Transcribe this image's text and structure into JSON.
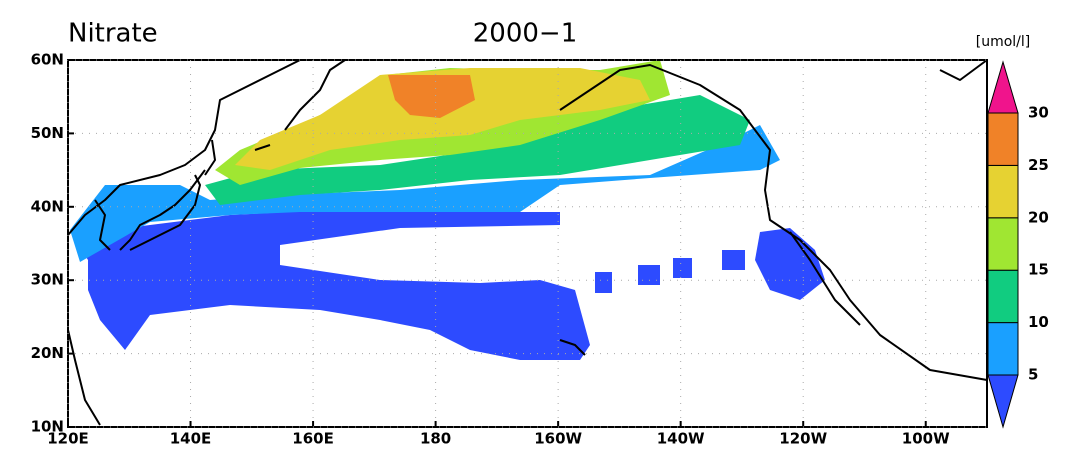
{
  "chart_data": {
    "type": "map",
    "title": "Nitrate",
    "subtitle": "2000−1",
    "xlim": [
      120,
      270
    ],
    "ylim": [
      10,
      60
    ],
    "xticks": [
      {
        "value": 120,
        "label": "120E"
      },
      {
        "value": 140,
        "label": "140E"
      },
      {
        "value": 160,
        "label": "160E"
      },
      180,
      {
        "value": 200,
        "label": "160W"
      },
      {
        "value": 220,
        "label": "140W"
      },
      {
        "value": 240,
        "label": "120W"
      },
      {
        "value": 260,
        "label": "100W"
      }
    ],
    "yticks": [
      {
        "value": 10,
        "label": "10N"
      },
      {
        "value": 20,
        "label": "20N"
      },
      {
        "value": 30,
        "label": "30N"
      },
      {
        "value": 40,
        "label": "40N"
      },
      {
        "value": 50,
        "label": "50N"
      },
      {
        "value": 60,
        "label": "60N"
      }
    ],
    "grid": true,
    "colorbar": {
      "label": "[umol/l]",
      "levels": [
        5,
        10,
        15,
        20,
        25,
        30
      ],
      "colors": [
        "#2d4bff",
        "#1aa0ff",
        "#11cc80",
        "#a0e632",
        "#e6d232",
        "#f08228",
        "#f0148c"
      ]
    }
  }
}
